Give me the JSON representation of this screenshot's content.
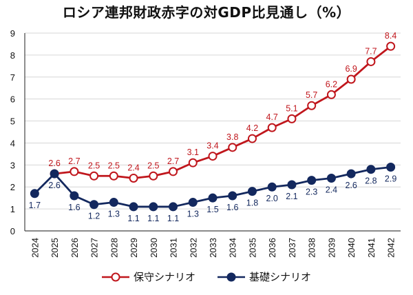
{
  "chart_data": {
    "type": "line",
    "title": "ロシア連邦財政赤字の対GDP比見通し（%）",
    "categories": [
      "2024",
      "2025",
      "2026",
      "2027",
      "2028",
      "2029",
      "2030",
      "2031",
      "2032",
      "2033",
      "2034",
      "2035",
      "2036",
      "2037",
      "2038",
      "2039",
      "2040",
      "2041",
      "2042"
    ],
    "series": [
      {
        "name": "保守シナリオ",
        "color": "#c0161c",
        "marker": "hollow-circle",
        "values": [
          null,
          2.6,
          2.7,
          2.5,
          2.5,
          2.4,
          2.5,
          2.7,
          3.1,
          3.4,
          3.8,
          4.2,
          4.7,
          5.1,
          5.7,
          6.2,
          6.9,
          7.7,
          8.4
        ],
        "labels": [
          "",
          "2.6",
          "2.7",
          "2.5",
          "2.5",
          "2.4",
          "2.5",
          "2.7",
          "3.1",
          "3.4",
          "3.8",
          "4.2",
          "4.7",
          "5.1",
          "5.7",
          "6.2",
          "6.9",
          "7.7",
          "8.4"
        ]
      },
      {
        "name": "基礎シナリオ",
        "color": "#13285e",
        "marker": "filled-circle",
        "values": [
          1.7,
          2.6,
          1.6,
          1.2,
          1.3,
          1.1,
          1.1,
          1.1,
          1.3,
          1.5,
          1.6,
          1.8,
          2.0,
          2.1,
          2.3,
          2.4,
          2.6,
          2.8,
          2.9
        ],
        "labels": [
          "1.7",
          "2.6",
          "1.6",
          "1.2",
          "1.3",
          "1.1",
          "1.1",
          "1.1",
          "1.3",
          "1.5",
          "1.6",
          "1.8",
          "2.0",
          "2.1",
          "2.3",
          "2.4",
          "2.6",
          "2.8",
          "2.9"
        ]
      }
    ],
    "ylim": [
      0,
      9
    ],
    "yticks": [
      "0",
      "1",
      "2",
      "3",
      "4",
      "5",
      "6",
      "7",
      "8",
      "9"
    ],
    "xlabel": "",
    "ylabel": "",
    "grid": true,
    "legend": "bottom-center"
  }
}
